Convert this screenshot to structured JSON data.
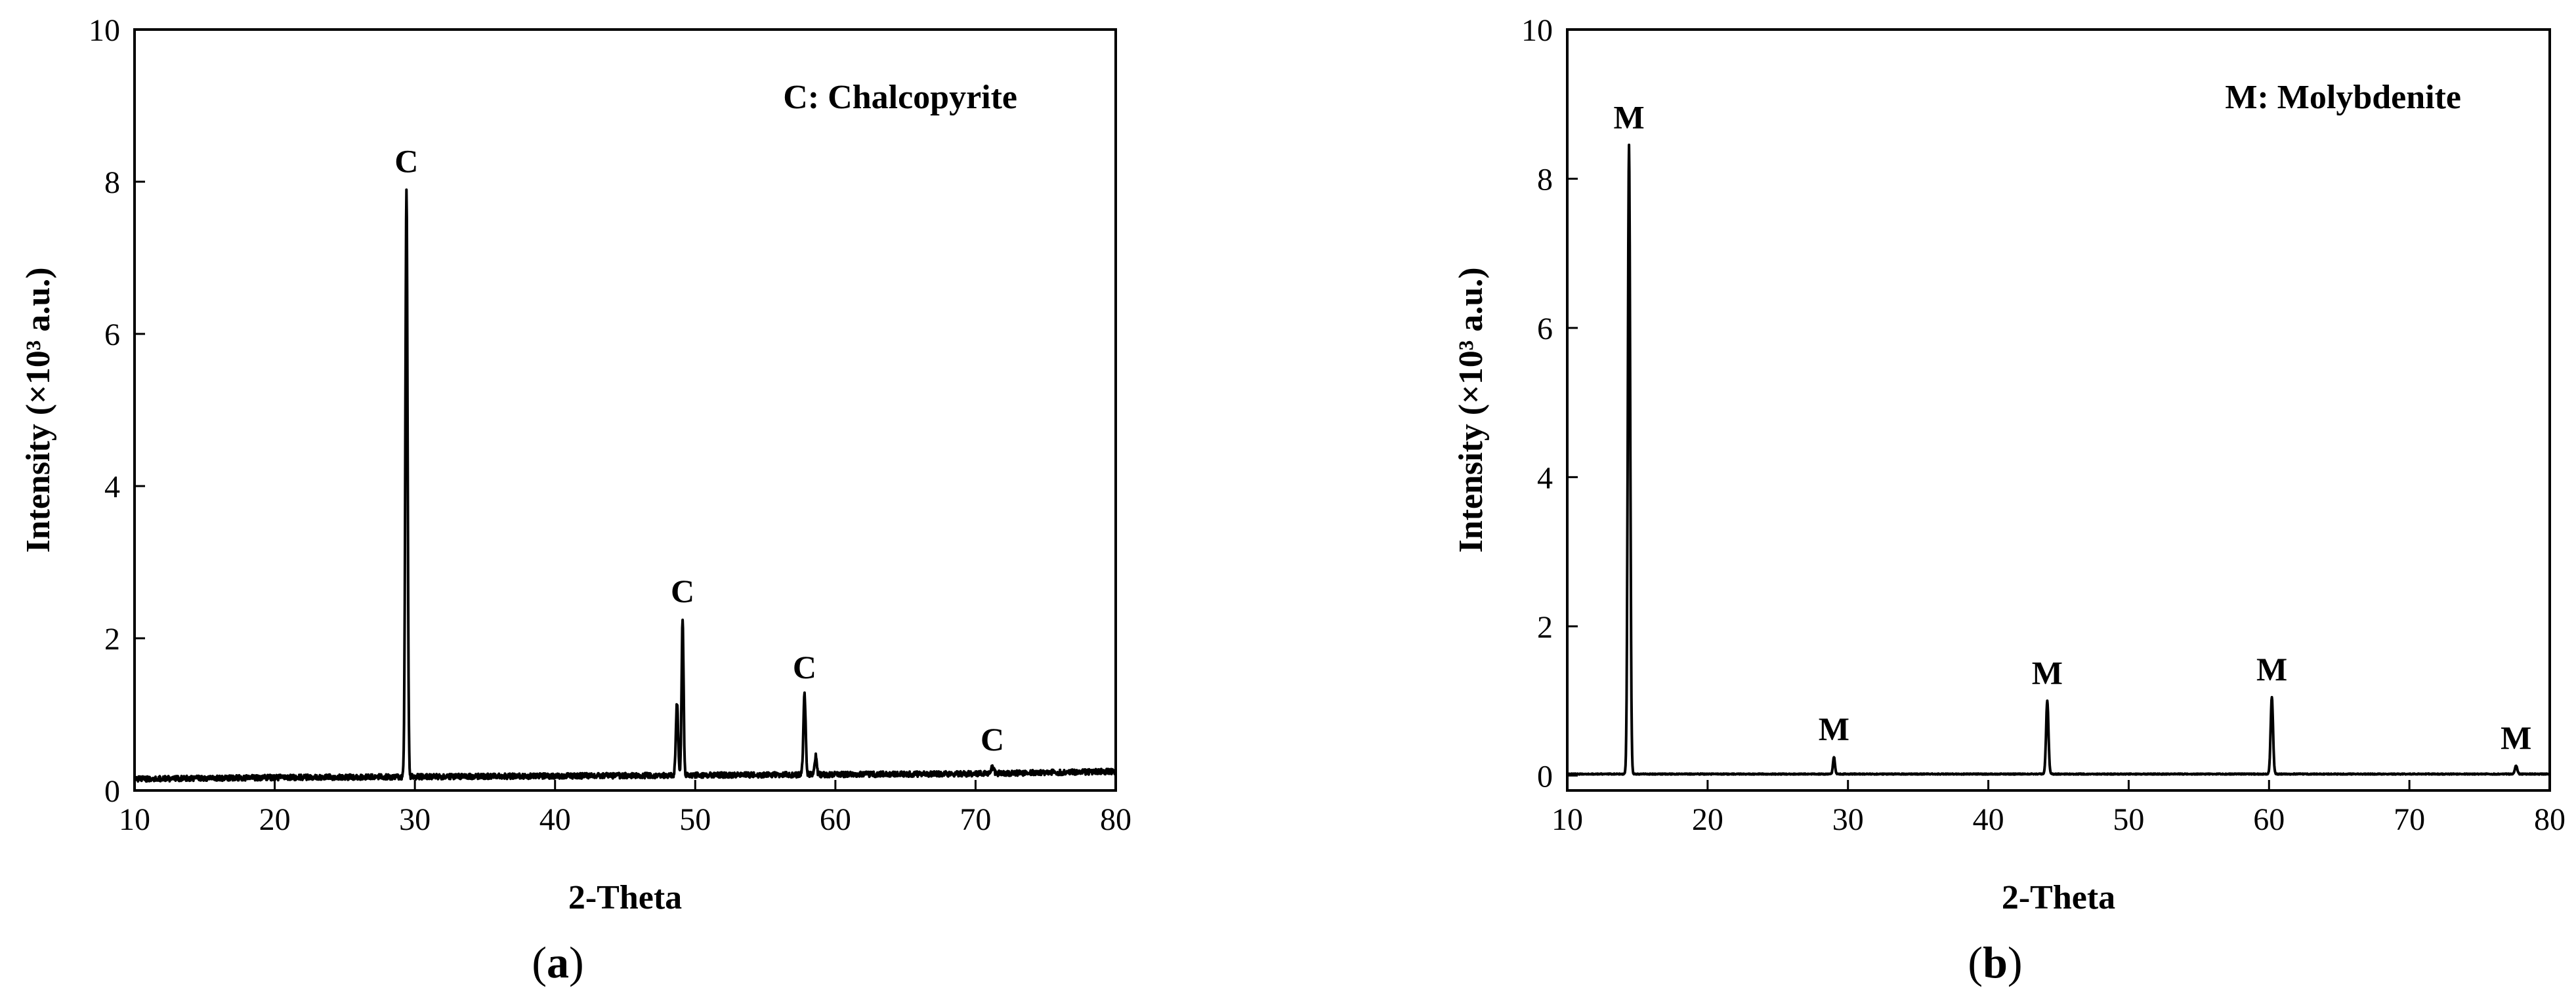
{
  "chart_data": [
    {
      "type": "line",
      "panel_label": "a",
      "xlabel": "2-Theta",
      "ylabel": "Intensity (×10³ a.u.)",
      "xlim": [
        10,
        80
      ],
      "ylim": [
        0,
        10
      ],
      "xticks": [
        "10",
        "20",
        "30",
        "40",
        "50",
        "60",
        "70",
        "80"
      ],
      "yticks": [
        "0",
        "2",
        "4",
        "6",
        "8",
        "10"
      ],
      "annotation": "C: Chalcopyrite",
      "baseline": [
        [
          10,
          0.15
        ],
        [
          20,
          0.17
        ],
        [
          30,
          0.18
        ],
        [
          40,
          0.19
        ],
        [
          50,
          0.2
        ],
        [
          60,
          0.21
        ],
        [
          70,
          0.22
        ],
        [
          80,
          0.25
        ]
      ],
      "peaks": [
        {
          "x": 29.4,
          "y": 7.9,
          "width": 0.16,
          "label": "C"
        },
        {
          "x": 48.7,
          "y": 1.15,
          "width": 0.16,
          "label": ""
        },
        {
          "x": 49.1,
          "y": 2.25,
          "width": 0.14,
          "label": "C"
        },
        {
          "x": 57.8,
          "y": 1.25,
          "width": 0.16,
          "label": "C"
        },
        {
          "x": 58.6,
          "y": 0.45,
          "width": 0.14,
          "label": ""
        },
        {
          "x": 71.2,
          "y": 0.3,
          "width": 0.2,
          "label": "C"
        }
      ]
    },
    {
      "type": "line",
      "panel_label": "b",
      "xlabel": "2-Theta",
      "ylabel": "Intensity (×10³ a.u.)",
      "xlim": [
        10,
        80
      ],
      "ylim": [
        -0.2,
        10
      ],
      "xticks": [
        "10",
        "20",
        "30",
        "40",
        "50",
        "60",
        "70",
        "80"
      ],
      "yticks": [
        "0",
        "2",
        "4",
        "6",
        "8",
        "10"
      ],
      "annotation": "M: Molybdenite",
      "baseline": [
        [
          10,
          0.02
        ],
        [
          80,
          0.02
        ]
      ],
      "peaks": [
        {
          "x": 14.4,
          "y": 8.45,
          "width": 0.17,
          "label": "M"
        },
        {
          "x": 29.0,
          "y": 0.25,
          "width": 0.14,
          "label": "M"
        },
        {
          "x": 44.2,
          "y": 1.0,
          "width": 0.17,
          "label": "M"
        },
        {
          "x": 60.2,
          "y": 1.05,
          "width": 0.17,
          "label": "M"
        },
        {
          "x": 77.6,
          "y": 0.13,
          "width": 0.17,
          "label": "M"
        }
      ]
    }
  ]
}
